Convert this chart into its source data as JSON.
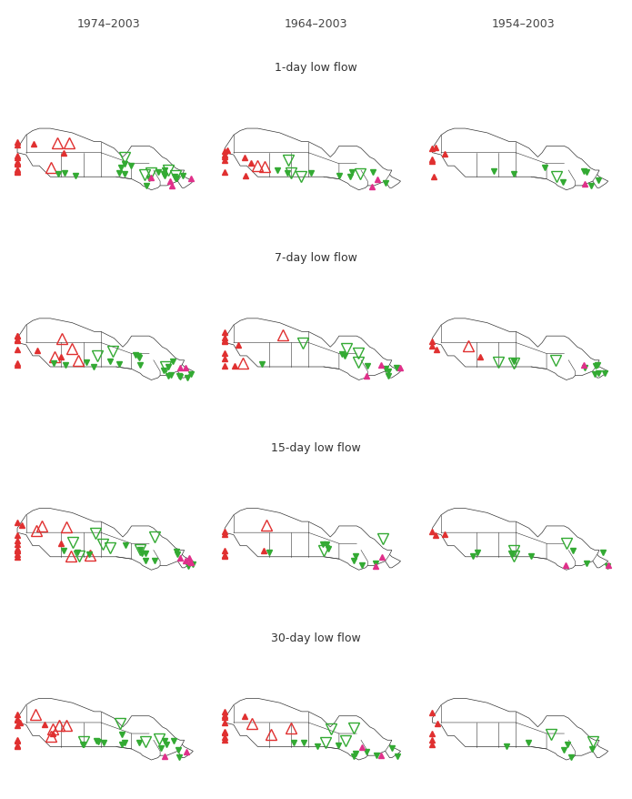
{
  "col_titles": [
    "1974–2003",
    "1964–2003",
    "1954–2003"
  ],
  "row_titles": [
    "1-day low flow",
    "7-day low flow",
    "15-day low flow",
    "30-day low flow"
  ],
  "col_title_fontsize": 10,
  "row_title_fontsize": 10,
  "background_color": "#ffffff",
  "map_linewidth": 0.5,
  "map_edgecolor": "#333333",
  "positive_filled_color": "#e03030",
  "negative_filled_color": "#e03030",
  "positive_open_color": "#e03030",
  "negative_open_color": "#33aa33",
  "positive_filled_green": "#33aa33",
  "marker_size_large": 7,
  "marker_size_small": 4,
  "canada_approx": true
}
